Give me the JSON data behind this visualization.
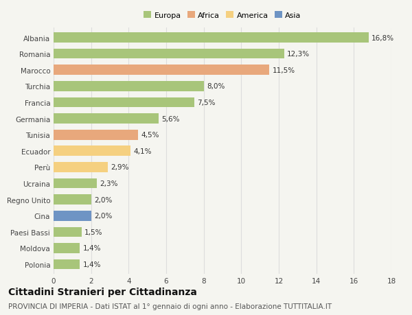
{
  "countries": [
    "Albania",
    "Romania",
    "Marocco",
    "Turchia",
    "Francia",
    "Germania",
    "Tunisia",
    "Ecuador",
    "Perù",
    "Ucraina",
    "Regno Unito",
    "Cina",
    "Paesi Bassi",
    "Moldova",
    "Polonia"
  ],
  "values": [
    16.8,
    12.3,
    11.5,
    8.0,
    7.5,
    5.6,
    4.5,
    4.1,
    2.9,
    2.3,
    2.0,
    2.0,
    1.5,
    1.4,
    1.4
  ],
  "labels": [
    "16,8%",
    "12,3%",
    "11,5%",
    "8,0%",
    "7,5%",
    "5,6%",
    "4,5%",
    "4,1%",
    "2,9%",
    "2,3%",
    "2,0%",
    "2,0%",
    "1,5%",
    "1,4%",
    "1,4%"
  ],
  "continents": [
    "Europa",
    "Europa",
    "Africa",
    "Europa",
    "Europa",
    "Europa",
    "Africa",
    "America",
    "America",
    "Europa",
    "Europa",
    "Asia",
    "Europa",
    "Europa",
    "Europa"
  ],
  "colors": {
    "Europa": "#a8c57a",
    "Africa": "#e8a87c",
    "America": "#f5d080",
    "Asia": "#6e94c4"
  },
  "background_color": "#f5f5f0",
  "title": "Cittadini Stranieri per Cittadinanza",
  "subtitle": "PROVINCIA DI IMPERIA - Dati ISTAT al 1° gennaio di ogni anno - Elaborazione TUTTITALIA.IT",
  "xlim": [
    0,
    18
  ],
  "xticks": [
    0,
    2,
    4,
    6,
    8,
    10,
    12,
    14,
    16,
    18
  ],
  "grid_color": "#dddddd",
  "bar_height": 0.62,
  "label_fontsize": 7.5,
  "tick_fontsize": 7.5,
  "title_fontsize": 10,
  "subtitle_fontsize": 7.5,
  "legend_entries": [
    "Europa",
    "Africa",
    "America",
    "Asia"
  ]
}
